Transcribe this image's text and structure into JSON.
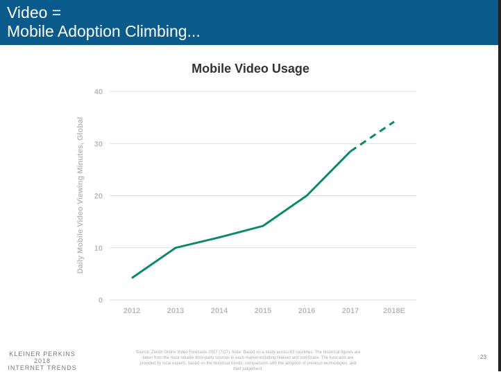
{
  "header": {
    "title": "Video =\nMobile Adoption Climbing..."
  },
  "chart_data": {
    "type": "line",
    "title": "Mobile Video Usage",
    "xlabel": "",
    "ylabel": "Daily Mobile Video Viewing Minutes, Global",
    "categories": [
      "2012",
      "2013",
      "2014",
      "2015",
      "2016",
      "2017",
      "2018E"
    ],
    "values": [
      4.2,
      10,
      12,
      14.2,
      20,
      28.5,
      34.2
    ],
    "estimate_from": "2017",
    "ylim": [
      0,
      40
    ],
    "yticks": [
      0,
      10,
      20,
      30,
      40
    ],
    "grid": true,
    "color": "#0a8a6a"
  },
  "footer": {
    "logo": [
      "KLEINER PERKINS",
      "2018",
      "INTERNET TRENDS"
    ],
    "source": "Source: Zenith Online Video Forecasts 2017 (7/17).  Note: Based on a study across 63 countries. The historical figures are taken from the most reliable third-party sources in each market including Nielsen and comScore. The forecasts are provided by local experts, based on the historical trends, comparisons with the adoption of previous technologies, and their judgement.",
    "page": "23"
  }
}
